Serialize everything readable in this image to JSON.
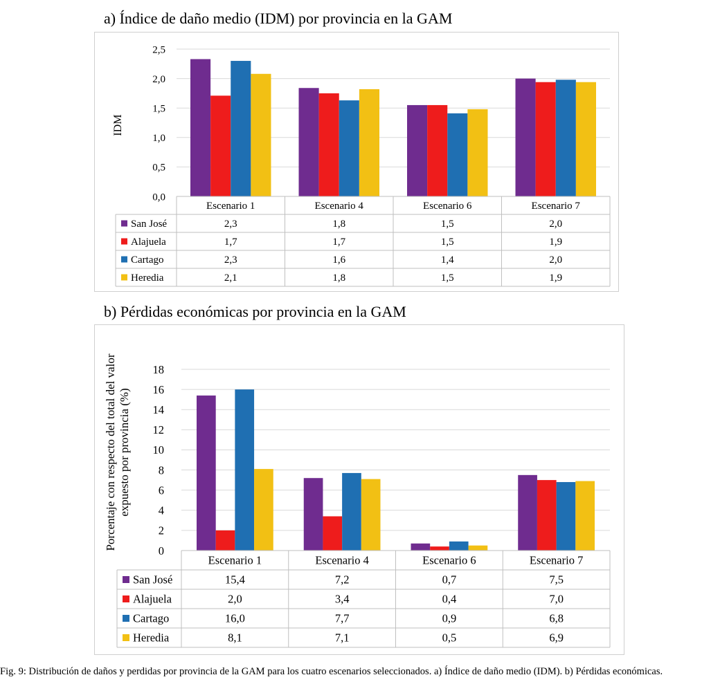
{
  "colors": {
    "San José": "#6f2c8f",
    "Alajuela": "#ee1c1c",
    "Cartago": "#1f6fb2",
    "Heredia": "#f2c014",
    "grid": "#d9d9d9",
    "border": "#bfbfbf"
  },
  "caption": "Fig. 9: Distribución de daños y perdidas por provincia de la GAM para los cuatro escenarios seleccionados. a) Índice de daño medio (IDM). b) Pérdidas económicas.",
  "chart_data": [
    {
      "type": "bar",
      "title": "a) Índice de daño medio (IDM) por provincia en la GAM",
      "ylabel": "IDM",
      "xlabel": "",
      "ylim": [
        0,
        2.5
      ],
      "yticks": [
        "0,0",
        "0,5",
        "1,0",
        "1,5",
        "2,0",
        "2,5"
      ],
      "categories": [
        "Escenario 1",
        "Escenario 4",
        "Escenario 6",
        "Escenario 7"
      ],
      "legend": "data-table",
      "grid": true,
      "series": [
        {
          "name": "San José",
          "values": [
            2.33,
            1.84,
            1.55,
            2.0
          ],
          "labels": [
            "2,3",
            "1,8",
            "1,5",
            "2,0"
          ]
        },
        {
          "name": "Alajuela",
          "values": [
            1.71,
            1.75,
            1.55,
            1.94
          ],
          "labels": [
            "1,7",
            "1,7",
            "1,5",
            "1,9"
          ]
        },
        {
          "name": "Cartago",
          "values": [
            2.3,
            1.63,
            1.41,
            1.98
          ],
          "labels": [
            "2,3",
            "1,6",
            "1,4",
            "2,0"
          ]
        },
        {
          "name": "Heredia",
          "values": [
            2.08,
            1.82,
            1.48,
            1.94
          ],
          "labels": [
            "2,1",
            "1,8",
            "1,5",
            "1,9"
          ]
        }
      ]
    },
    {
      "type": "bar",
      "title": "b) Pérdidas económicas por provincia en la GAM",
      "ylabel": "Porcentaje con respecto del total del valor expuesto por provincia (%)",
      "ylabel_lines": [
        "Porcentaje con respecto del total del valor",
        "expuesto por provincia (%)"
      ],
      "xlabel": "",
      "ylim": [
        0,
        18
      ],
      "yticks": [
        "0",
        "2",
        "4",
        "6",
        "8",
        "10",
        "12",
        "14",
        "16",
        "18"
      ],
      "categories": [
        "Escenario 1",
        "Escenario 4",
        "Escenario 6",
        "Escenario 7"
      ],
      "legend": "data-table",
      "grid": true,
      "series": [
        {
          "name": "San José",
          "values": [
            15.4,
            7.2,
            0.7,
            7.5
          ],
          "labels": [
            "15,4",
            "7,2",
            "0,7",
            "7,5"
          ]
        },
        {
          "name": "Alajuela",
          "values": [
            2.0,
            3.4,
            0.4,
            7.0
          ],
          "labels": [
            "2,0",
            "3,4",
            "0,4",
            "7,0"
          ]
        },
        {
          "name": "Cartago",
          "values": [
            16.0,
            7.7,
            0.9,
            6.8
          ],
          "labels": [
            "16,0",
            "7,7",
            "0,9",
            "6,8"
          ]
        },
        {
          "name": "Heredia",
          "values": [
            8.1,
            7.1,
            0.5,
            6.9
          ],
          "labels": [
            "8,1",
            "7,1",
            "0,5",
            "6,9"
          ]
        }
      ]
    }
  ]
}
